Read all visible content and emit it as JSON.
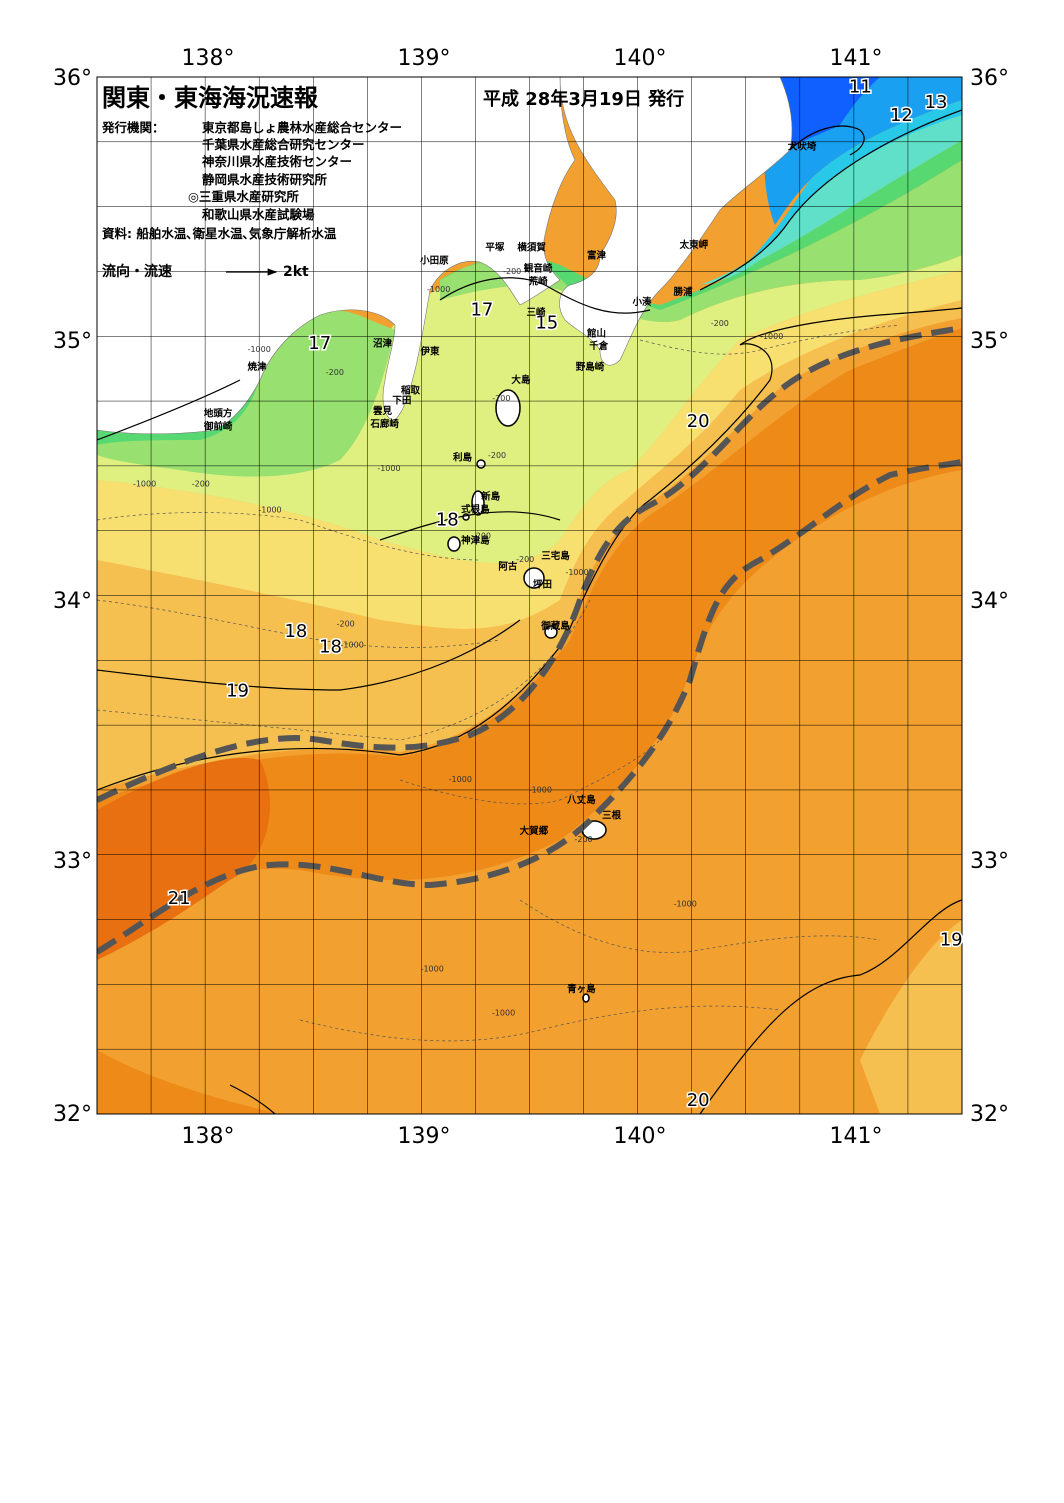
{
  "title": "関東・東海海況速報",
  "date": "平成 28年3月19日 発行",
  "publisher_label": "発行機関：",
  "publishers": [
    "東京都島しょ農林水産総合センター",
    "千葉県水産総合研究センター",
    "神奈川県水産技術センター",
    "静岡県水産技術研究所",
    "◎三重県水産研究所",
    "和歌山県水産試験場"
  ],
  "sources": "資料: 船舶水温､衛星水温､気象庁解析水温",
  "legend": {
    "label": "流向・流速",
    "speed": "2kt"
  },
  "axes": {
    "lon_labels": [
      "138°",
      "139°",
      "140°",
      "141°"
    ],
    "lat_labels": [
      "36°",
      "35°",
      "34°",
      "33°",
      "32°"
    ],
    "lon_range": [
      137.5,
      141.5
    ],
    "lat_range": [
      32,
      36
    ]
  },
  "colors": {
    "t11": "#1060ff",
    "t12": "#1aa0f0",
    "t13": "#28c8e8",
    "t14": "#60e0c8",
    "t15": "#58d870",
    "t16": "#98e070",
    "t17": "#e0f080",
    "t18": "#f8e070",
    "t19": "#f5c050",
    "t20": "#f2a030",
    "t21": "#ee8a18",
    "t22": "#e87010",
    "kuroshio": "#555555"
  },
  "isotherm_labels": [
    {
      "text": "11",
      "lon": 141.03,
      "lat": 35.94
    },
    {
      "text": "13",
      "lon": 141.38,
      "lat": 35.88
    },
    {
      "text": "12",
      "lon": 141.22,
      "lat": 35.83
    },
    {
      "text": "17",
      "lon": 139.28,
      "lat": 35.08
    },
    {
      "text": "15",
      "lon": 139.58,
      "lat": 35.03
    },
    {
      "text": "17",
      "lon": 138.53,
      "lat": 34.95
    },
    {
      "text": "20",
      "lon": 140.28,
      "lat": 34.65
    },
    {
      "text": "18",
      "lon": 139.12,
      "lat": 34.27
    },
    {
      "text": "18",
      "lon": 138.42,
      "lat": 33.84
    },
    {
      "text": "18",
      "lon": 138.58,
      "lat": 33.78
    },
    {
      "text": "19",
      "lon": 138.15,
      "lat": 33.61
    },
    {
      "text": "21",
      "lon": 137.88,
      "lat": 32.81
    },
    {
      "text": "19",
      "lon": 141.45,
      "lat": 32.65
    },
    {
      "text": "20",
      "lon": 140.28,
      "lat": 32.03
    }
  ],
  "places": [
    {
      "name": "犬吠埼",
      "lon": 140.76,
      "lat": 35.72
    },
    {
      "name": "太東岬",
      "lon": 140.26,
      "lat": 35.34
    },
    {
      "name": "勝浦",
      "lon": 140.21,
      "lat": 35.16
    },
    {
      "name": "小湊",
      "lon": 140.02,
      "lat": 35.12
    },
    {
      "name": "平塚",
      "lon": 139.34,
      "lat": 35.33
    },
    {
      "name": "横須賀",
      "lon": 139.51,
      "lat": 35.33
    },
    {
      "name": "小田原",
      "lon": 139.06,
      "lat": 35.28
    },
    {
      "name": "富津",
      "lon": 139.81,
      "lat": 35.3
    },
    {
      "name": "観音崎",
      "lon": 139.54,
      "lat": 35.25
    },
    {
      "name": "荒崎",
      "lon": 139.54,
      "lat": 35.2
    },
    {
      "name": "三崎",
      "lon": 139.53,
      "lat": 35.08
    },
    {
      "name": "館山",
      "lon": 139.81,
      "lat": 35.0
    },
    {
      "name": "千倉",
      "lon": 139.82,
      "lat": 34.95
    },
    {
      "name": "野島崎",
      "lon": 139.78,
      "lat": 34.87
    },
    {
      "name": "沼津",
      "lon": 138.82,
      "lat": 34.96
    },
    {
      "name": "伊東",
      "lon": 139.04,
      "lat": 34.93
    },
    {
      "name": "焼津",
      "lon": 138.24,
      "lat": 34.87
    },
    {
      "name": "稲取",
      "lon": 138.95,
      "lat": 34.78
    },
    {
      "name": "大島",
      "lon": 139.46,
      "lat": 34.82
    },
    {
      "name": "下田",
      "lon": 138.91,
      "lat": 34.74
    },
    {
      "name": "雲見",
      "lon": 138.82,
      "lat": 34.7
    },
    {
      "name": "石廊崎",
      "lon": 138.83,
      "lat": 34.65
    },
    {
      "name": "地頭方",
      "lon": 138.06,
      "lat": 34.69
    },
    {
      "name": "御前崎",
      "lon": 138.06,
      "lat": 34.64
    },
    {
      "name": "利島",
      "lon": 139.19,
      "lat": 34.52
    },
    {
      "name": "新島",
      "lon": 139.32,
      "lat": 34.37
    },
    {
      "name": "式根島",
      "lon": 139.25,
      "lat": 34.32
    },
    {
      "name": "神津島",
      "lon": 139.25,
      "lat": 34.2
    },
    {
      "name": "三宅島",
      "lon": 139.62,
      "lat": 34.14
    },
    {
      "name": "阿古",
      "lon": 139.4,
      "lat": 34.1
    },
    {
      "name": "坪田",
      "lon": 139.56,
      "lat": 34.03
    },
    {
      "name": "御蔵島",
      "lon": 139.62,
      "lat": 33.87
    },
    {
      "name": "八丈島",
      "lon": 139.74,
      "lat": 33.2
    },
    {
      "name": "三根",
      "lon": 139.88,
      "lat": 33.14
    },
    {
      "name": "大賀郷",
      "lon": 139.52,
      "lat": 33.08
    },
    {
      "name": "青ヶ島",
      "lon": 139.74,
      "lat": 32.47
    }
  ],
  "depth_labels": [
    {
      "text": "-1000",
      "lon": 138.25,
      "lat": 34.94
    },
    {
      "text": "-200",
      "lon": 138.6,
      "lat": 34.85
    },
    {
      "text": "-1000",
      "lon": 138.85,
      "lat": 34.48
    },
    {
      "text": "-1000",
      "lon": 139.08,
      "lat": 35.17
    },
    {
      "text": "-200",
      "lon": 139.42,
      "lat": 35.24
    },
    {
      "text": "-200",
      "lon": 139.37,
      "lat": 34.75
    },
    {
      "text": "-200",
      "lon": 139.35,
      "lat": 34.53
    },
    {
      "text": "-1000",
      "lon": 137.72,
      "lat": 34.42
    },
    {
      "text": "-200",
      "lon": 137.98,
      "lat": 34.42
    },
    {
      "text": "-1000",
      "lon": 138.3,
      "lat": 34.32
    },
    {
      "text": "-200",
      "lon": 139.28,
      "lat": 34.22
    },
    {
      "text": "-200",
      "lon": 139.48,
      "lat": 34.13
    },
    {
      "text": "-1000",
      "lon": 139.72,
      "lat": 34.08
    },
    {
      "text": "-200",
      "lon": 138.65,
      "lat": 33.88
    },
    {
      "text": "-1000",
      "lon": 138.68,
      "lat": 33.8
    },
    {
      "text": "-200",
      "lon": 140.38,
      "lat": 35.04
    },
    {
      "text": "-1000",
      "lon": 140.62,
      "lat": 34.99
    },
    {
      "text": "-1000",
      "lon": 139.18,
      "lat": 33.28
    },
    {
      "text": "-1000",
      "lon": 139.55,
      "lat": 33.24
    },
    {
      "text": "-200",
      "lon": 139.75,
      "lat": 33.05
    },
    {
      "text": "-1000",
      "lon": 140.22,
      "lat": 32.8
    },
    {
      "text": "-1000",
      "lon": 139.05,
      "lat": 32.55
    },
    {
      "text": "-1000",
      "lon": 139.38,
      "lat": 32.38
    }
  ]
}
